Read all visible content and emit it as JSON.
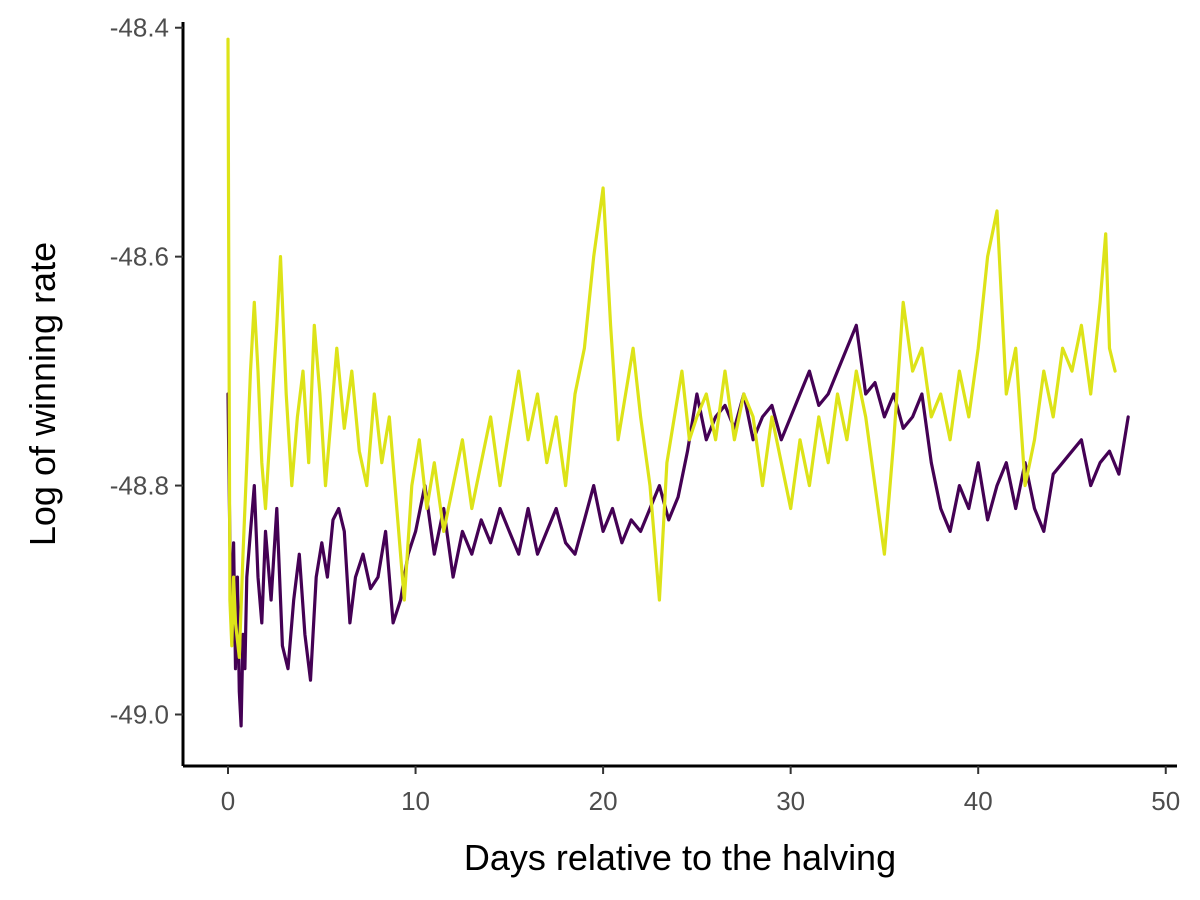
{
  "chart_data": {
    "type": "line",
    "title": "",
    "xlabel": "Days relative to the halving",
    "ylabel": "Log of winning rate",
    "xlim": [
      -2.4,
      50.6
    ],
    "ylim": [
      -49.045,
      -48.395
    ],
    "x_ticks": [
      0,
      10,
      20,
      30,
      40,
      50
    ],
    "x_tick_labels": [
      "0",
      "10",
      "20",
      "30",
      "40",
      "50"
    ],
    "y_ticks": [
      -49.0,
      -48.8,
      -48.6,
      -48.4
    ],
    "y_tick_labels": [
      "-49.0",
      "-48.8",
      "-48.6",
      "-48.4"
    ],
    "grid": false,
    "legend": "none",
    "series": [
      {
        "color": "#440154",
        "points": [
          [
            0.0,
            -48.72
          ],
          [
            0.1,
            -48.85
          ],
          [
            0.2,
            -48.92
          ],
          [
            0.3,
            -48.85
          ],
          [
            0.4,
            -48.96
          ],
          [
            0.5,
            -48.88
          ],
          [
            0.6,
            -48.98
          ],
          [
            0.7,
            -49.01
          ],
          [
            0.8,
            -48.93
          ],
          [
            0.9,
            -48.96
          ],
          [
            1.0,
            -48.88
          ],
          [
            1.2,
            -48.84
          ],
          [
            1.4,
            -48.8
          ],
          [
            1.6,
            -48.88
          ],
          [
            1.8,
            -48.92
          ],
          [
            2.0,
            -48.84
          ],
          [
            2.3,
            -48.9
          ],
          [
            2.6,
            -48.82
          ],
          [
            2.9,
            -48.94
          ],
          [
            3.2,
            -48.96
          ],
          [
            3.5,
            -48.9
          ],
          [
            3.8,
            -48.86
          ],
          [
            4.1,
            -48.93
          ],
          [
            4.4,
            -48.97
          ],
          [
            4.7,
            -48.88
          ],
          [
            5.0,
            -48.85
          ],
          [
            5.3,
            -48.88
          ],
          [
            5.6,
            -48.83
          ],
          [
            5.9,
            -48.82
          ],
          [
            6.2,
            -48.84
          ],
          [
            6.5,
            -48.92
          ],
          [
            6.8,
            -48.88
          ],
          [
            7.2,
            -48.86
          ],
          [
            7.6,
            -48.89
          ],
          [
            8.0,
            -48.88
          ],
          [
            8.4,
            -48.84
          ],
          [
            8.8,
            -48.92
          ],
          [
            9.2,
            -48.9
          ],
          [
            9.6,
            -48.86
          ],
          [
            10.0,
            -48.84
          ],
          [
            10.5,
            -48.8
          ],
          [
            11.0,
            -48.86
          ],
          [
            11.5,
            -48.82
          ],
          [
            12.0,
            -48.88
          ],
          [
            12.5,
            -48.84
          ],
          [
            13.0,
            -48.86
          ],
          [
            13.5,
            -48.83
          ],
          [
            14.0,
            -48.85
          ],
          [
            14.5,
            -48.82
          ],
          [
            15.0,
            -48.84
          ],
          [
            15.5,
            -48.86
          ],
          [
            16.0,
            -48.82
          ],
          [
            16.5,
            -48.86
          ],
          [
            17.0,
            -48.84
          ],
          [
            17.5,
            -48.82
          ],
          [
            18.0,
            -48.85
          ],
          [
            18.5,
            -48.86
          ],
          [
            19.0,
            -48.83
          ],
          [
            19.5,
            -48.8
          ],
          [
            20.0,
            -48.84
          ],
          [
            20.5,
            -48.82
          ],
          [
            21.0,
            -48.85
          ],
          [
            21.5,
            -48.83
          ],
          [
            22.0,
            -48.84
          ],
          [
            22.5,
            -48.82
          ],
          [
            23.0,
            -48.8
          ],
          [
            23.5,
            -48.83
          ],
          [
            24.0,
            -48.81
          ],
          [
            24.5,
            -48.77
          ],
          [
            25.0,
            -48.72
          ],
          [
            25.5,
            -48.76
          ],
          [
            26.0,
            -48.74
          ],
          [
            26.5,
            -48.73
          ],
          [
            27.0,
            -48.75
          ],
          [
            27.5,
            -48.72
          ],
          [
            28.0,
            -48.76
          ],
          [
            28.5,
            -48.74
          ],
          [
            29.0,
            -48.73
          ],
          [
            29.5,
            -48.76
          ],
          [
            30.0,
            -48.74
          ],
          [
            30.5,
            -48.72
          ],
          [
            31.0,
            -48.7
          ],
          [
            31.5,
            -48.73
          ],
          [
            32.0,
            -48.72
          ],
          [
            32.5,
            -48.7
          ],
          [
            33.0,
            -48.68
          ],
          [
            33.5,
            -48.66
          ],
          [
            34.0,
            -48.72
          ],
          [
            34.5,
            -48.71
          ],
          [
            35.0,
            -48.74
          ],
          [
            35.5,
            -48.72
          ],
          [
            36.0,
            -48.75
          ],
          [
            36.5,
            -48.74
          ],
          [
            37.0,
            -48.72
          ],
          [
            37.5,
            -48.78
          ],
          [
            38.0,
            -48.82
          ],
          [
            38.5,
            -48.84
          ],
          [
            39.0,
            -48.8
          ],
          [
            39.5,
            -48.82
          ],
          [
            40.0,
            -48.78
          ],
          [
            40.5,
            -48.83
          ],
          [
            41.0,
            -48.8
          ],
          [
            41.5,
            -48.78
          ],
          [
            42.0,
            -48.82
          ],
          [
            42.5,
            -48.78
          ],
          [
            43.0,
            -48.82
          ],
          [
            43.5,
            -48.84
          ],
          [
            44.0,
            -48.79
          ],
          [
            44.5,
            -48.78
          ],
          [
            45.0,
            -48.77
          ],
          [
            45.5,
            -48.76
          ],
          [
            46.0,
            -48.8
          ],
          [
            46.5,
            -48.78
          ],
          [
            47.0,
            -48.77
          ],
          [
            47.5,
            -48.79
          ],
          [
            48.0,
            -48.74
          ]
        ]
      },
      {
        "color": "#dde318",
        "points": [
          [
            0.0,
            -48.41
          ],
          [
            0.1,
            -48.9
          ],
          [
            0.2,
            -48.94
          ],
          [
            0.3,
            -48.88
          ],
          [
            0.4,
            -48.92
          ],
          [
            0.6,
            -48.95
          ],
          [
            0.8,
            -48.86
          ],
          [
            1.0,
            -48.78
          ],
          [
            1.2,
            -48.7
          ],
          [
            1.4,
            -48.64
          ],
          [
            1.6,
            -48.7
          ],
          [
            1.8,
            -48.78
          ],
          [
            2.0,
            -48.82
          ],
          [
            2.3,
            -48.74
          ],
          [
            2.6,
            -48.66
          ],
          [
            2.8,
            -48.6
          ],
          [
            3.1,
            -48.72
          ],
          [
            3.4,
            -48.8
          ],
          [
            3.7,
            -48.74
          ],
          [
            4.0,
            -48.7
          ],
          [
            4.3,
            -48.78
          ],
          [
            4.6,
            -48.66
          ],
          [
            4.9,
            -48.72
          ],
          [
            5.2,
            -48.8
          ],
          [
            5.5,
            -48.74
          ],
          [
            5.8,
            -48.68
          ],
          [
            6.2,
            -48.75
          ],
          [
            6.6,
            -48.7
          ],
          [
            7.0,
            -48.77
          ],
          [
            7.4,
            -48.8
          ],
          [
            7.8,
            -48.72
          ],
          [
            8.2,
            -48.78
          ],
          [
            8.6,
            -48.74
          ],
          [
            9.0,
            -48.82
          ],
          [
            9.4,
            -48.9
          ],
          [
            9.8,
            -48.8
          ],
          [
            10.2,
            -48.76
          ],
          [
            10.6,
            -48.82
          ],
          [
            11.0,
            -48.78
          ],
          [
            11.5,
            -48.84
          ],
          [
            12.0,
            -48.8
          ],
          [
            12.5,
            -48.76
          ],
          [
            13.0,
            -48.82
          ],
          [
            13.5,
            -48.78
          ],
          [
            14.0,
            -48.74
          ],
          [
            14.5,
            -48.8
          ],
          [
            15.0,
            -48.75
          ],
          [
            15.5,
            -48.7
          ],
          [
            16.0,
            -48.76
          ],
          [
            16.5,
            -48.72
          ],
          [
            17.0,
            -48.78
          ],
          [
            17.5,
            -48.74
          ],
          [
            18.0,
            -48.8
          ],
          [
            18.5,
            -48.72
          ],
          [
            19.0,
            -48.68
          ],
          [
            19.5,
            -48.6
          ],
          [
            20.0,
            -48.54
          ],
          [
            20.4,
            -48.66
          ],
          [
            20.8,
            -48.76
          ],
          [
            21.2,
            -48.72
          ],
          [
            21.6,
            -48.68
          ],
          [
            22.0,
            -48.74
          ],
          [
            22.5,
            -48.8
          ],
          [
            23.0,
            -48.9
          ],
          [
            23.4,
            -48.78
          ],
          [
            23.8,
            -48.74
          ],
          [
            24.2,
            -48.7
          ],
          [
            24.6,
            -48.76
          ],
          [
            25.0,
            -48.74
          ],
          [
            25.5,
            -48.72
          ],
          [
            26.0,
            -48.76
          ],
          [
            26.5,
            -48.7
          ],
          [
            27.0,
            -48.76
          ],
          [
            27.5,
            -48.72
          ],
          [
            28.0,
            -48.74
          ],
          [
            28.5,
            -48.8
          ],
          [
            29.0,
            -48.74
          ],
          [
            29.5,
            -48.78
          ],
          [
            30.0,
            -48.82
          ],
          [
            30.5,
            -48.76
          ],
          [
            31.0,
            -48.8
          ],
          [
            31.5,
            -48.74
          ],
          [
            32.0,
            -48.78
          ],
          [
            32.5,
            -48.72
          ],
          [
            33.0,
            -48.76
          ],
          [
            33.5,
            -48.7
          ],
          [
            34.0,
            -48.74
          ],
          [
            34.5,
            -48.8
          ],
          [
            35.0,
            -48.86
          ],
          [
            35.5,
            -48.76
          ],
          [
            36.0,
            -48.64
          ],
          [
            36.5,
            -48.7
          ],
          [
            37.0,
            -48.68
          ],
          [
            37.5,
            -48.74
          ],
          [
            38.0,
            -48.72
          ],
          [
            38.5,
            -48.76
          ],
          [
            39.0,
            -48.7
          ],
          [
            39.5,
            -48.74
          ],
          [
            40.0,
            -48.68
          ],
          [
            40.5,
            -48.6
          ],
          [
            41.0,
            -48.56
          ],
          [
            41.5,
            -48.72
          ],
          [
            42.0,
            -48.68
          ],
          [
            42.5,
            -48.8
          ],
          [
            43.0,
            -48.76
          ],
          [
            43.5,
            -48.7
          ],
          [
            44.0,
            -48.74
          ],
          [
            44.5,
            -48.68
          ],
          [
            45.0,
            -48.7
          ],
          [
            45.5,
            -48.66
          ],
          [
            46.0,
            -48.72
          ],
          [
            46.5,
            -48.64
          ],
          [
            46.8,
            -48.58
          ],
          [
            47.0,
            -48.68
          ],
          [
            47.3,
            -48.7
          ]
        ]
      }
    ]
  }
}
